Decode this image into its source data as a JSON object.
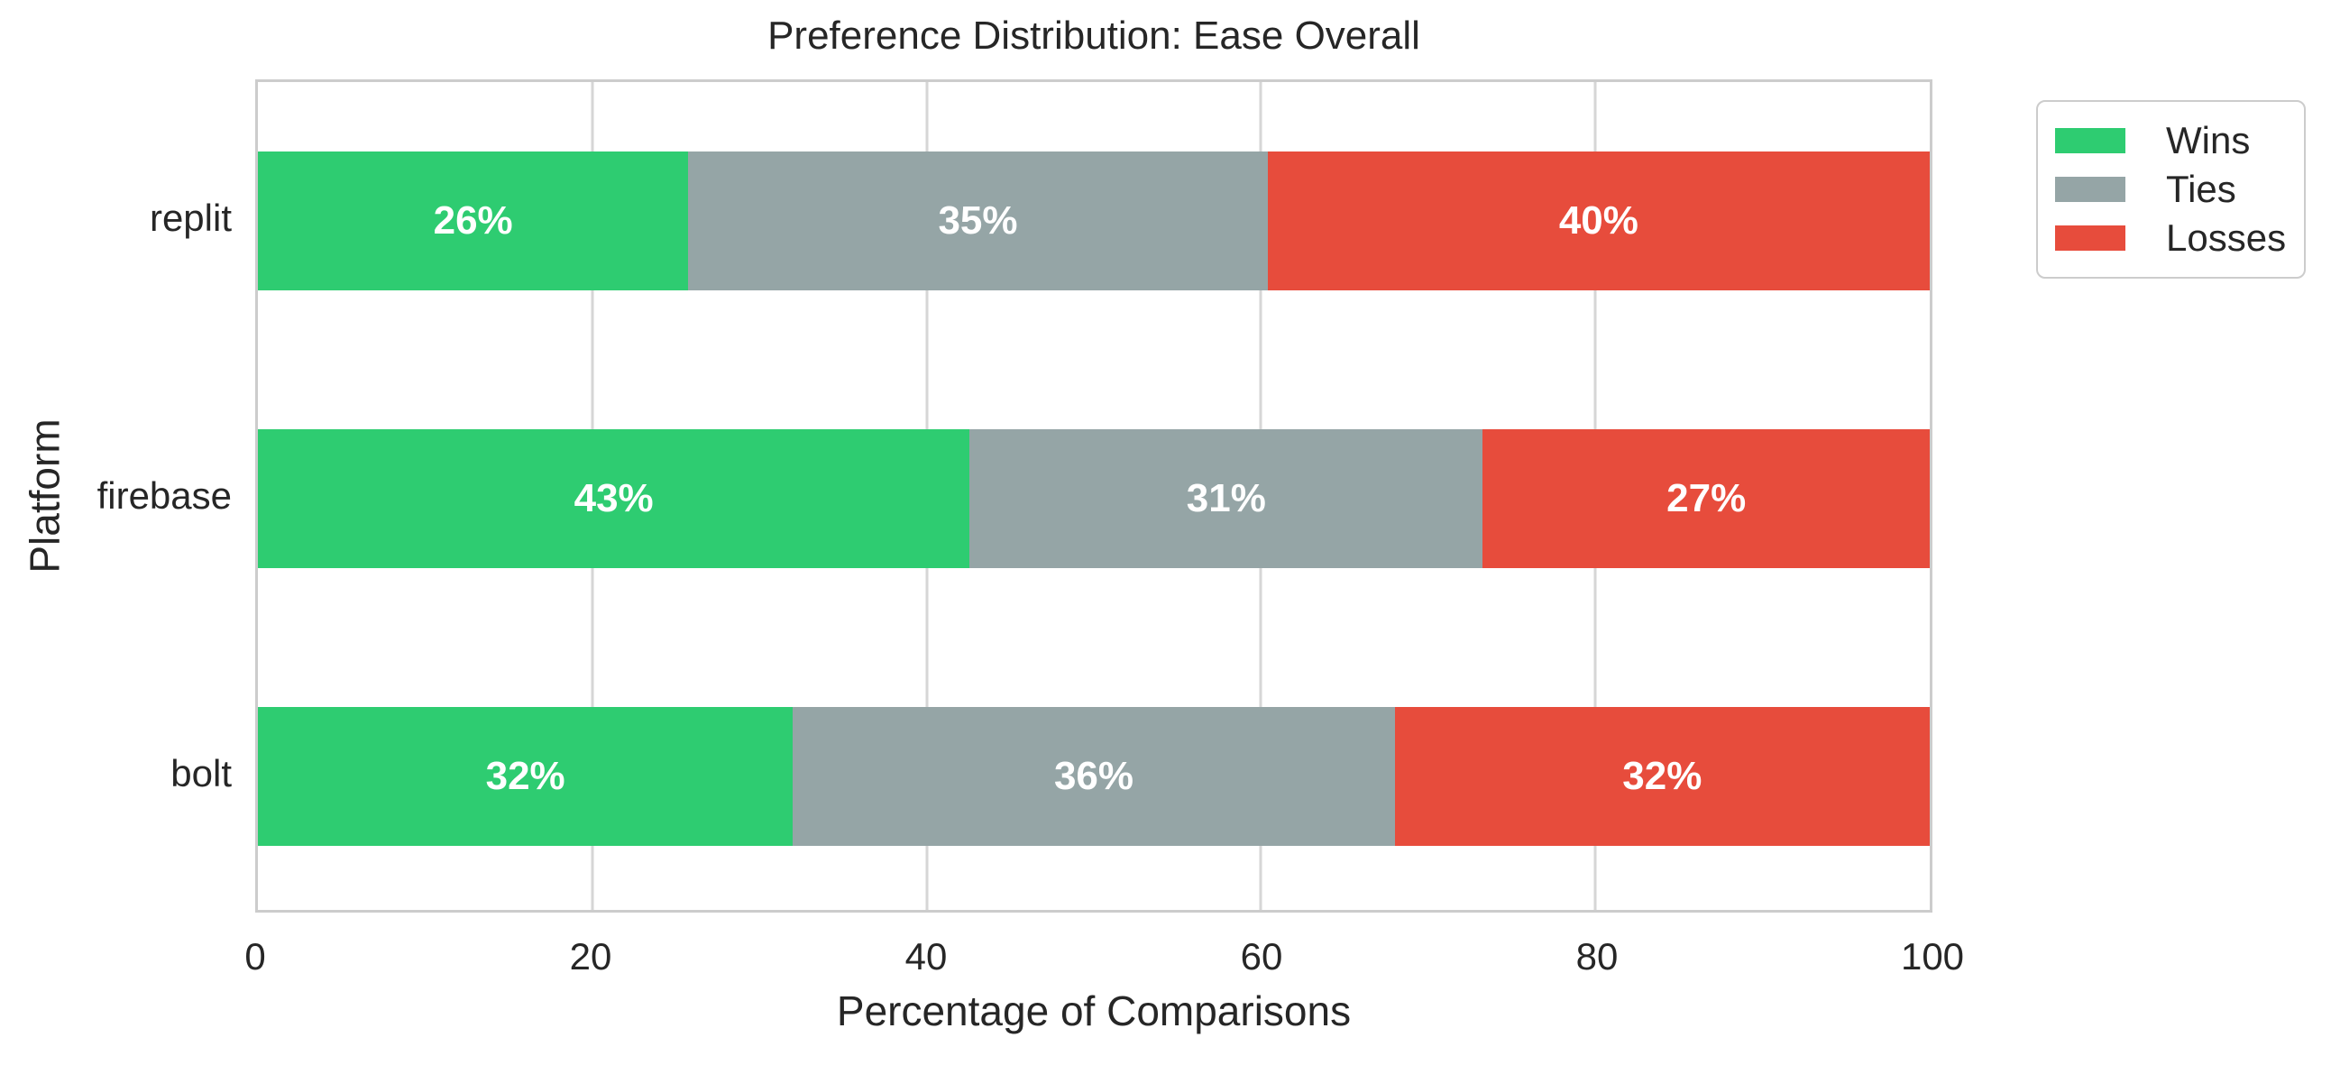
{
  "chart_data": {
    "type": "bar",
    "orientation": "horizontal",
    "stacked": true,
    "title": "Preference Distribution: Ease Overall",
    "xlabel": "Percentage of Comparisons",
    "ylabel": "Platform",
    "categories": [
      "replit",
      "firebase",
      "bolt"
    ],
    "series": [
      {
        "name": "Wins",
        "color": "#2ecc71",
        "values": [
          26,
          43,
          32
        ]
      },
      {
        "name": "Ties",
        "color": "#95a5a6",
        "values": [
          35,
          31,
          36
        ]
      },
      {
        "name": "Losses",
        "color": "#e74c3c",
        "values": [
          40,
          27,
          32
        ]
      }
    ],
    "bar_labels": [
      [
        "26%",
        "35%",
        "40%"
      ],
      [
        "43%",
        "31%",
        "27%"
      ],
      [
        "32%",
        "36%",
        "32%"
      ]
    ],
    "xlim": [
      0,
      100
    ],
    "xticks": [
      0,
      20,
      40,
      60,
      80,
      100
    ],
    "grid": true,
    "legend": {
      "entries": [
        "Wins",
        "Ties",
        "Losses"
      ],
      "position": "outside-upper-right"
    }
  },
  "style_colors": {
    "grid": "#d6d6d6",
    "spine": "#cccccc",
    "text": "#262626",
    "bar_label_text": "#ffffff",
    "background": "#ffffff"
  }
}
